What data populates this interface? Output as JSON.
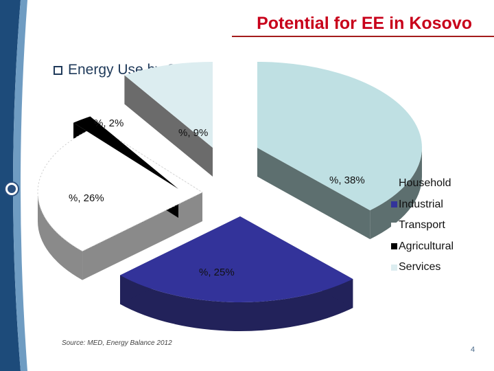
{
  "slide": {
    "title": "Potential for EE in Kosovo",
    "bullet": "Energy Use by Sector",
    "source": "Source: MED, Energy Balance 2012",
    "page_number": "4"
  },
  "colors": {
    "title": "#c8001a",
    "accent_blue": "#2a4f7e"
  },
  "chart_data": {
    "type": "pie",
    "style": "3d-exploded",
    "legend_position": "right",
    "slices": [
      {
        "name": "Household",
        "value": 38,
        "label": "%, 38%",
        "color": "#bfe0e3",
        "side": "#5d6f6f"
      },
      {
        "name": "Industrial",
        "value": 25,
        "label": "%, 25%",
        "color": "#33339a",
        "side": "#22225a"
      },
      {
        "name": "Transport",
        "value": 26,
        "label": "%, 26%",
        "color": "#ffffff",
        "side": "#8a8a8a"
      },
      {
        "name": "Agricultural",
        "value": 2,
        "label": "%, 2%",
        "color": "#000000",
        "side": "#000000"
      },
      {
        "name": "Services",
        "value": 9,
        "label": "%, 9%",
        "color": "#dcedf0",
        "side": "#6b6b6b"
      }
    ]
  }
}
